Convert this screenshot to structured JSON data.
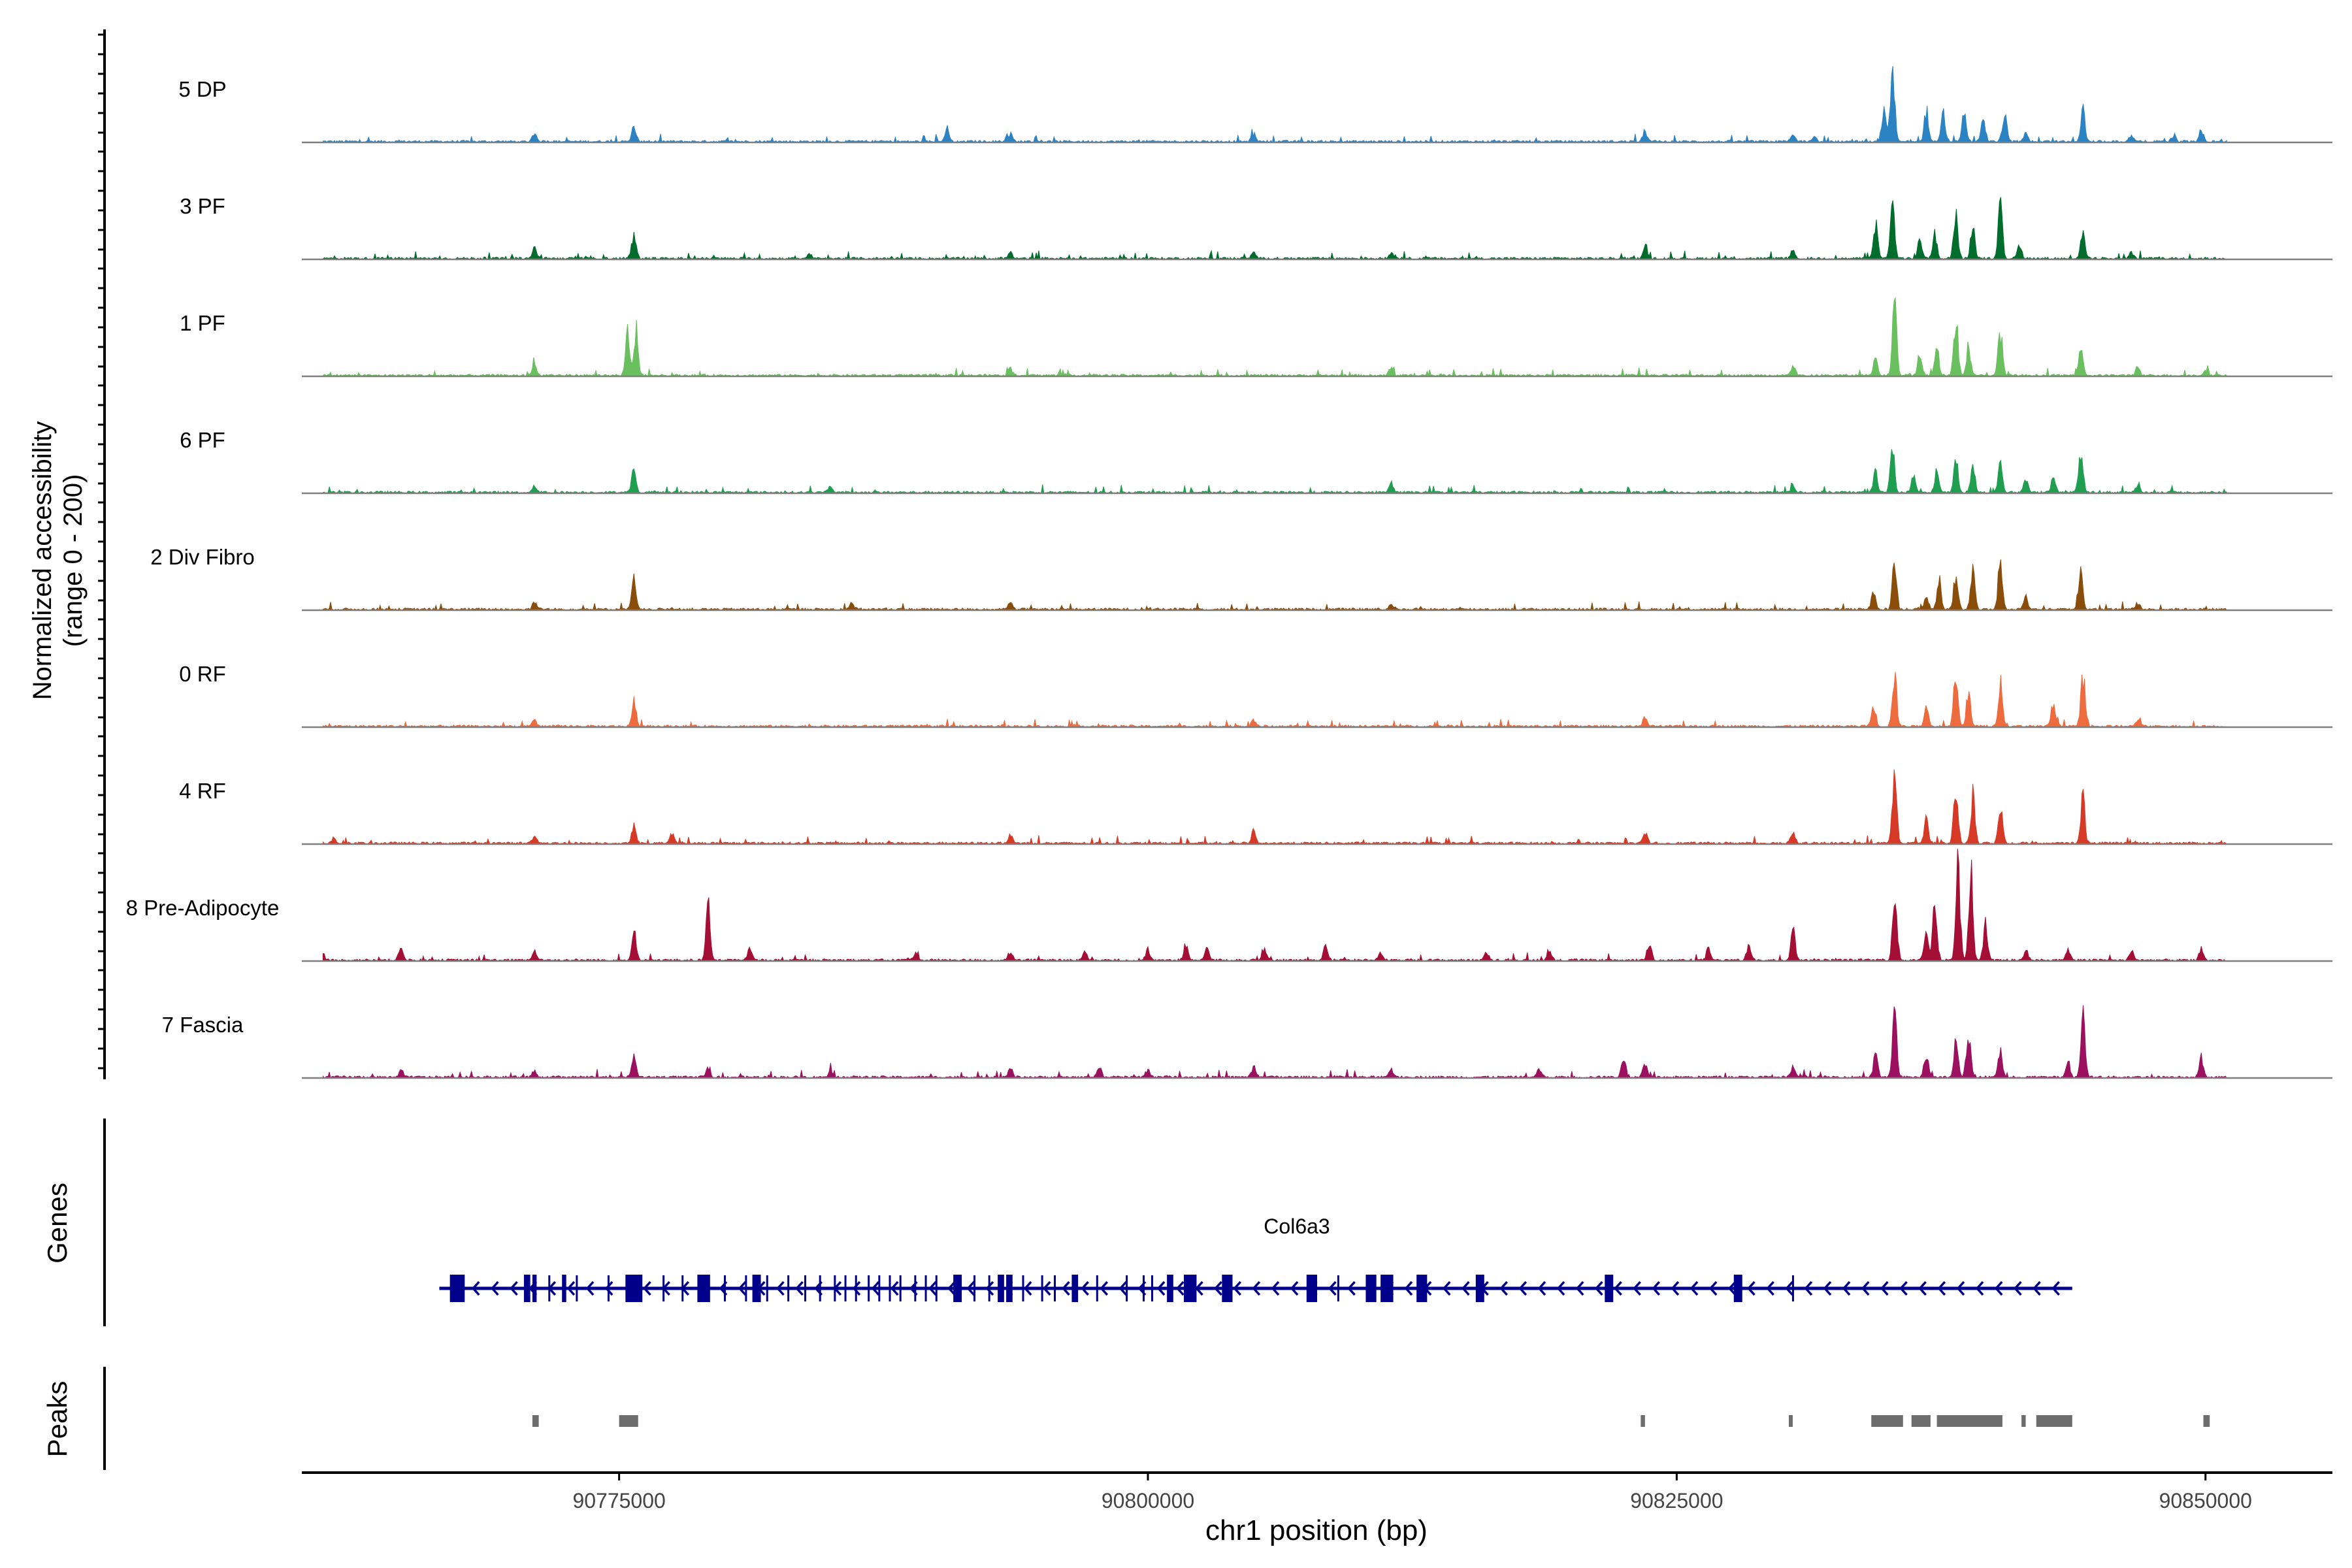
{
  "chart_data": {
    "type": "area",
    "title": "",
    "ylabel": [
      "Normalized accessibility",
      "(range 0 - 200)"
    ],
    "xlabel": "chr1 position (bp)",
    "xlim": [
      90760000,
      90856000
    ],
    "ylim": [
      0,
      200
    ],
    "x_ticks": [
      90775000,
      90800000,
      90825000,
      90850000
    ],
    "x_tick_labels": [
      "90775000",
      "90800000",
      "90825000",
      "90850000"
    ],
    "tracks": [
      {
        "name": "5 DP",
        "color": "#2b83c4",
        "peaks": [
          [
            90771000,
            12
          ],
          [
            90775700,
            18
          ],
          [
            90790500,
            16
          ],
          [
            90793500,
            10
          ],
          [
            90805000,
            10
          ],
          [
            90823500,
            14
          ],
          [
            90830500,
            10
          ],
          [
            90831500,
            6
          ],
          [
            90834800,
            42
          ],
          [
            90835200,
            100
          ],
          [
            90836800,
            40
          ],
          [
            90837600,
            36
          ],
          [
            90838600,
            38
          ],
          [
            90839500,
            30
          ],
          [
            90840500,
            36
          ],
          [
            90841500,
            12
          ],
          [
            90844200,
            38
          ],
          [
            90846500,
            8
          ],
          [
            90848500,
            8
          ],
          [
            90849800,
            14
          ]
        ]
      },
      {
        "name": "3 PF",
        "color": "#006d2c",
        "peaks": [
          [
            90771000,
            14
          ],
          [
            90775700,
            30
          ],
          [
            90784000,
            6
          ],
          [
            90793500,
            8
          ],
          [
            90805000,
            8
          ],
          [
            90811500,
            8
          ],
          [
            90823500,
            16
          ],
          [
            90830500,
            10
          ],
          [
            90834400,
            45
          ],
          [
            90835200,
            68
          ],
          [
            90836500,
            28
          ],
          [
            90837200,
            35
          ],
          [
            90838200,
            62
          ],
          [
            90839000,
            40
          ],
          [
            90840300,
            72
          ],
          [
            90841200,
            18
          ],
          [
            90844200,
            32
          ],
          [
            90846500,
            8
          ]
        ]
      },
      {
        "name": "1 PF",
        "color": "#6abf5e",
        "peaks": [
          [
            90771000,
            14
          ],
          [
            90775400,
            55
          ],
          [
            90775800,
            58
          ],
          [
            90793500,
            10
          ],
          [
            90811500,
            10
          ],
          [
            90830500,
            14
          ],
          [
            90834400,
            28
          ],
          [
            90835300,
            100
          ],
          [
            90836500,
            30
          ],
          [
            90837300,
            35
          ],
          [
            90838200,
            72
          ],
          [
            90838800,
            40
          ],
          [
            90840300,
            58
          ],
          [
            90844100,
            42
          ],
          [
            90846800,
            10
          ],
          [
            90850000,
            8
          ]
        ]
      },
      {
        "name": "6 PF",
        "color": "#1e9e4e",
        "peaks": [
          [
            90771000,
            8
          ],
          [
            90775700,
            30
          ],
          [
            90785000,
            8
          ],
          [
            90811500,
            10
          ],
          [
            90830500,
            8
          ],
          [
            90834400,
            28
          ],
          [
            90835200,
            52
          ],
          [
            90836200,
            20
          ],
          [
            90837300,
            28
          ],
          [
            90838200,
            40
          ],
          [
            90839000,
            35
          ],
          [
            90840300,
            42
          ],
          [
            90841500,
            18
          ],
          [
            90842800,
            20
          ],
          [
            90844100,
            45
          ],
          [
            90846800,
            8
          ]
        ]
      },
      {
        "name": "2 Div Fibro",
        "color": "#8b4d0a",
        "peaks": [
          [
            90771000,
            10
          ],
          [
            90775700,
            38
          ],
          [
            90786000,
            8
          ],
          [
            90793500,
            8
          ],
          [
            90811500,
            8
          ],
          [
            90834300,
            22
          ],
          [
            90835300,
            62
          ],
          [
            90836800,
            20
          ],
          [
            90837400,
            40
          ],
          [
            90838200,
            48
          ],
          [
            90839000,
            52
          ],
          [
            90840300,
            65
          ],
          [
            90841500,
            16
          ],
          [
            90844100,
            45
          ],
          [
            90846800,
            8
          ]
        ]
      },
      {
        "name": "0 RF",
        "color": "#ee6b3e",
        "peaks": [
          [
            90771000,
            8
          ],
          [
            90775700,
            35
          ],
          [
            90805000,
            8
          ],
          [
            90823500,
            12
          ],
          [
            90834300,
            22
          ],
          [
            90835300,
            68
          ],
          [
            90836800,
            25
          ],
          [
            90838200,
            68
          ],
          [
            90838800,
            45
          ],
          [
            90840300,
            55
          ],
          [
            90842800,
            28
          ],
          [
            90844200,
            70
          ],
          [
            90846800,
            8
          ]
        ]
      },
      {
        "name": "4 RF",
        "color": "#d63a26",
        "peaks": [
          [
            90761500,
            6
          ],
          [
            90771000,
            10
          ],
          [
            90775700,
            22
          ],
          [
            90777500,
            14
          ],
          [
            90793500,
            12
          ],
          [
            90805000,
            16
          ],
          [
            90823500,
            14
          ],
          [
            90830500,
            16
          ],
          [
            90835300,
            95
          ],
          [
            90836800,
            30
          ],
          [
            90838200,
            75
          ],
          [
            90839000,
            62
          ],
          [
            90840300,
            55
          ],
          [
            90844200,
            58
          ]
        ]
      },
      {
        "name": "8 Pre-Adipocyte",
        "color": "#a50f35",
        "peaks": [
          [
            90761000,
            8
          ],
          [
            90764700,
            18
          ],
          [
            90771000,
            12
          ],
          [
            90775700,
            35
          ],
          [
            90779200,
            70
          ],
          [
            90781200,
            16
          ],
          [
            90789000,
            8
          ],
          [
            90793500,
            10
          ],
          [
            90797000,
            12
          ],
          [
            90800000,
            14
          ],
          [
            90801800,
            20
          ],
          [
            90802800,
            16
          ],
          [
            90805500,
            16
          ],
          [
            90808400,
            20
          ],
          [
            90811000,
            10
          ],
          [
            90816000,
            10
          ],
          [
            90819000,
            12
          ],
          [
            90823700,
            22
          ],
          [
            90826500,
            14
          ],
          [
            90828400,
            18
          ],
          [
            90830500,
            45
          ],
          [
            90835300,
            85
          ],
          [
            90836800,
            40
          ],
          [
            90837200,
            70
          ],
          [
            90838300,
            120
          ],
          [
            90838900,
            115
          ],
          [
            90839600,
            45
          ],
          [
            90841500,
            14
          ],
          [
            90843500,
            16
          ],
          [
            90846500,
            12
          ],
          [
            90849800,
            14
          ]
        ]
      },
      {
        "name": "7 Fascia",
        "color": "#9c1060",
        "peaks": [
          [
            90764700,
            8
          ],
          [
            90771000,
            8
          ],
          [
            90775700,
            25
          ],
          [
            90779200,
            10
          ],
          [
            90785000,
            10
          ],
          [
            90793500,
            12
          ],
          [
            90797700,
            14
          ],
          [
            90800000,
            10
          ],
          [
            90805000,
            14
          ],
          [
            90811500,
            10
          ],
          [
            90818500,
            10
          ],
          [
            90822500,
            24
          ],
          [
            90823500,
            18
          ],
          [
            90830500,
            12
          ],
          [
            90834400,
            28
          ],
          [
            90835300,
            80
          ],
          [
            90836800,
            30
          ],
          [
            90838200,
            45
          ],
          [
            90838800,
            60
          ],
          [
            90840300,
            32
          ],
          [
            90843500,
            20
          ],
          [
            90844200,
            80
          ],
          [
            90849800,
            25
          ]
        ]
      }
    ],
    "gene_track": {
      "label": "Genes",
      "gene_name": "Col6a3",
      "strand": "-",
      "start": 90766500,
      "end": 90843700,
      "color": "#00008b",
      "exons": [
        [
          90767000,
          90767700
        ],
        [
          90770500,
          90770800
        ],
        [
          90770900,
          90771100
        ],
        [
          90772300,
          90772500
        ],
        [
          90775300,
          90776100
        ],
        [
          90778700,
          90779300
        ],
        [
          90781300,
          90781700
        ],
        [
          90790800,
          90791200
        ],
        [
          90792900,
          90793200
        ],
        [
          90793300,
          90793600
        ],
        [
          90796400,
          90796700
        ],
        [
          90800900,
          90801200
        ],
        [
          90801700,
          90802300
        ],
        [
          90803500,
          90804000
        ],
        [
          90807500,
          90808000
        ],
        [
          90810300,
          90810800
        ],
        [
          90811000,
          90811600
        ],
        [
          90812700,
          90813200
        ],
        [
          90815500,
          90815900
        ],
        [
          90821600,
          90822000
        ],
        [
          90827700,
          90828100
        ]
      ],
      "thin_exons": [
        90771700,
        90773000,
        90774500,
        90777100,
        90778000,
        90780000,
        90781000,
        90781500,
        90782000,
        90783000,
        90783800,
        90784500,
        90785200,
        90785700,
        90786200,
        90786800,
        90787300,
        90787800,
        90788300,
        90789000,
        90789500,
        90790000,
        90791800,
        90792500,
        90794100,
        90795000,
        90795600,
        90797600,
        90799000,
        90799800,
        90800200,
        90809000,
        90830500
      ]
    },
    "peak_track": {
      "label": "Peaks",
      "color": "#6d6d6d",
      "regions": [
        [
          90770900,
          90771200
        ],
        [
          90775000,
          90775900
        ],
        [
          90823300,
          90823500
        ],
        [
          90830300,
          90830450
        ],
        [
          90834200,
          90835700
        ],
        [
          90836100,
          90837000
        ],
        [
          90837300,
          90840400
        ],
        [
          90841300,
          90841500
        ],
        [
          90842000,
          90843700
        ],
        [
          90849900,
          90850200
        ]
      ]
    }
  }
}
